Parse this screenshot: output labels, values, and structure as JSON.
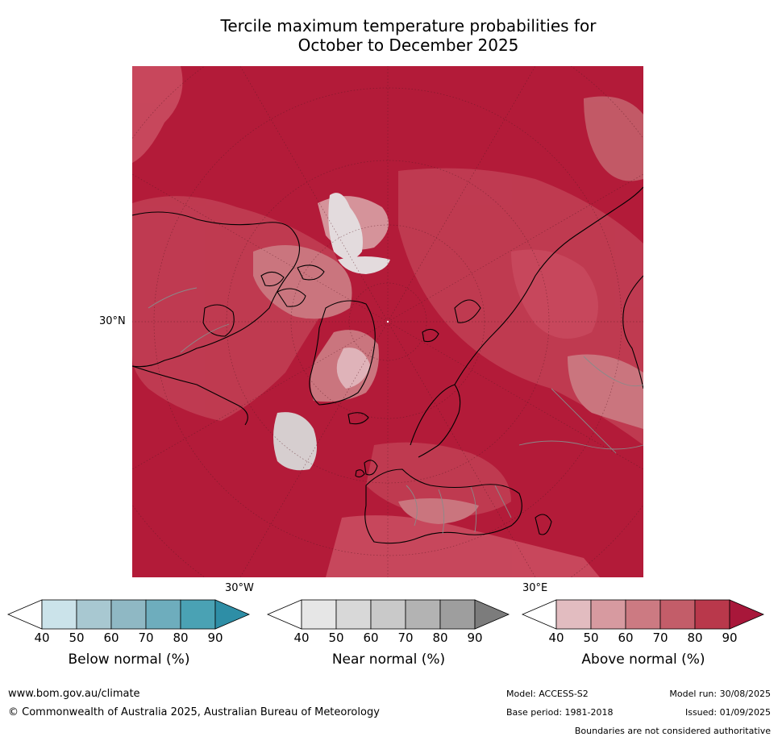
{
  "title_line1": "Tercile maximum temperature probabilities for",
  "title_line2": "October to December 2025",
  "map": {
    "lat_label": "30°N",
    "lon_labels": [
      "30°W",
      "30°E"
    ],
    "dominant_color": "#b31b39"
  },
  "colorbars": [
    {
      "label": "Below normal (%)",
      "ticks": [
        "40",
        "50",
        "60",
        "70",
        "80",
        "90"
      ],
      "colors": [
        "#ffffff",
        "#cbe3ea",
        "#a8c8d1",
        "#8fb8c4",
        "#6eadbd",
        "#4aa2b4",
        "#2e8ea6"
      ]
    },
    {
      "label": "Near normal (%)",
      "ticks": [
        "40",
        "50",
        "60",
        "70",
        "80",
        "90"
      ],
      "colors": [
        "#ffffff",
        "#e6e6e6",
        "#d8d8d8",
        "#c9c9c9",
        "#b3b3b3",
        "#9e9e9e",
        "#7c7c7c"
      ]
    },
    {
      "label": "Above normal (%)",
      "ticks": [
        "40",
        "50",
        "60",
        "70",
        "80",
        "90"
      ],
      "colors": [
        "#ffffff",
        "#e2bcc0",
        "#d79aa0",
        "#cc7a82",
        "#c35d69",
        "#b9384b",
        "#a8173a"
      ]
    }
  ],
  "footer": {
    "website": "www.bom.gov.au/climate",
    "copyright": "© Commonwealth of Australia 2025, Australian Bureau of Meteorology",
    "model": "Model: ACCESS-S2",
    "model_run": "Model run: 30/08/2025",
    "base_period": "Base period: 1981-2018",
    "issued": "Issued: 01/09/2025",
    "disclaimer": "Boundaries are not considered authoritative"
  }
}
